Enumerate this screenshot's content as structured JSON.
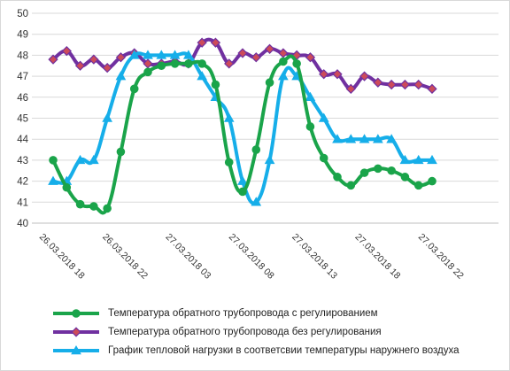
{
  "chart_data": {
    "type": "line",
    "ylim": [
      40,
      50
    ],
    "y_ticks": [
      40,
      41,
      42,
      43,
      44,
      45,
      46,
      47,
      48,
      49,
      50
    ],
    "x_tick_labels": [
      "26.03.2018 18",
      "26.03.2018 22",
      "27.03.2018 03",
      "27.03.2018 08",
      "27.03.2018 13",
      "27.03.2018 18",
      "27.03.2018 22"
    ],
    "x_count": 29,
    "legend_position": "bottom",
    "series": [
      {
        "name": "Температура обратного трубопровода  с регулированием",
        "color": "#1aa44a",
        "marker": "circle",
        "values": [
          43.0,
          41.7,
          40.9,
          40.8,
          40.7,
          43.4,
          46.4,
          47.2,
          47.5,
          47.6,
          47.6,
          47.6,
          46.6,
          42.9,
          41.5,
          43.5,
          46.7,
          47.7,
          47.6,
          44.6,
          43.1,
          42.2,
          41.8,
          42.4,
          42.6,
          42.5,
          42.2,
          41.8,
          42.0
        ]
      },
      {
        "name": "Температура обратного трубопровода  без регулирования",
        "color": "#7030a0",
        "marker": "diamond",
        "values": [
          47.8,
          48.2,
          47.5,
          47.8,
          47.4,
          47.9,
          48.1,
          47.6,
          47.6,
          47.7,
          47.6,
          48.6,
          48.6,
          47.6,
          48.1,
          47.9,
          48.3,
          48.1,
          48.0,
          47.9,
          47.1,
          47.1,
          46.4,
          47.0,
          46.7,
          46.6,
          46.6,
          46.6,
          46.4
        ]
      },
      {
        "name": "График тепловой нагрузки в соответсвии температуры наружнего воздуха",
        "color": "#16aee9",
        "marker": "triangle",
        "values": [
          42.0,
          42.0,
          43.0,
          43.0,
          45.0,
          47.0,
          48.0,
          48.0,
          48.0,
          48.0,
          48.0,
          47.0,
          46.0,
          45.0,
          42.0,
          41.0,
          43.0,
          47.0,
          47.0,
          46.0,
          45.0,
          44.0,
          44.0,
          44.0,
          44.0,
          44.0,
          43.0,
          43.0,
          43.0
        ]
      }
    ]
  }
}
